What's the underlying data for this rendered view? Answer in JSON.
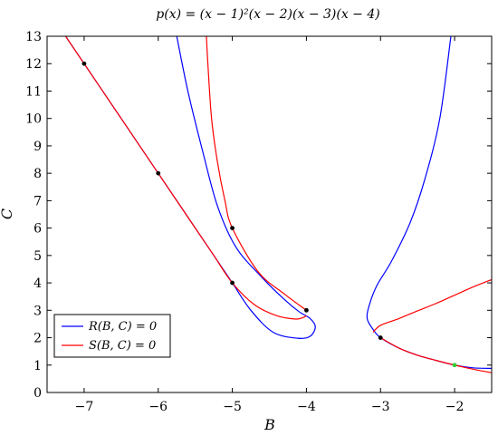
{
  "chart_data": {
    "type": "line",
    "title": "p(x) = (x − 1)²(x − 2)(x − 3)(x − 4)",
    "xlabel": "B",
    "ylabel": "C",
    "xlim": [
      -7.5,
      -1.5
    ],
    "ylim": [
      0,
      13
    ],
    "xticks": [
      -7,
      -6,
      -5,
      -4,
      -3,
      -2
    ],
    "yticks": [
      0,
      1,
      2,
      3,
      4,
      5,
      6,
      7,
      8,
      9,
      10,
      11,
      12,
      13
    ],
    "legend_position": "bottom-left",
    "series": [
      {
        "name": "R(B, C) = 0",
        "color": "#0000ff",
        "segments": [
          [
            [
              -7.25,
              13.0
            ],
            [
              -7.0,
              12.0
            ],
            [
              -6.75,
              11.0
            ],
            [
              -6.5,
              10.0
            ],
            [
              -6.25,
              9.0
            ],
            [
              -6.0,
              8.0
            ],
            [
              -5.75,
              7.0
            ],
            [
              -5.5,
              6.0
            ],
            [
              -5.25,
              5.0
            ],
            [
              -5.0,
              4.0
            ],
            [
              -4.75,
              3.0
            ],
            [
              -4.45,
              2.2
            ],
            [
              -4.12,
              1.98
            ],
            [
              -3.95,
              2.05
            ],
            [
              -3.88,
              2.4
            ],
            [
              -3.95,
              2.7
            ],
            [
              -4.1,
              2.95
            ],
            [
              -4.3,
              3.4
            ],
            [
              -4.6,
              4.2
            ],
            [
              -4.95,
              5.3
            ],
            [
              -5.2,
              6.8
            ],
            [
              -5.4,
              8.8
            ],
            [
              -5.6,
              11.0
            ],
            [
              -5.75,
              13.0
            ]
          ],
          [
            [
              -2.05,
              13.0
            ],
            [
              -2.2,
              10.0
            ],
            [
              -2.4,
              7.8
            ],
            [
              -2.6,
              6.2
            ],
            [
              -2.85,
              4.8
            ],
            [
              -3.05,
              3.9
            ],
            [
              -3.15,
              3.2
            ],
            [
              -3.18,
              2.7
            ],
            [
              -3.1,
              2.3
            ],
            [
              -3.0,
              2.0
            ],
            [
              -2.75,
              1.62
            ],
            [
              -2.5,
              1.36
            ],
            [
              -2.25,
              1.17
            ],
            [
              -2.0,
              1.0
            ],
            [
              -1.75,
              0.9
            ],
            [
              -1.5,
              0.88
            ]
          ]
        ]
      },
      {
        "name": "S(B, C) = 0",
        "color": "#ff0000",
        "segments": [
          [
            [
              -7.25,
              13.0
            ],
            [
              -7.0,
              12.0
            ],
            [
              -6.75,
              11.0
            ],
            [
              -6.5,
              10.0
            ],
            [
              -6.25,
              9.0
            ],
            [
              -6.0,
              8.0
            ],
            [
              -5.75,
              7.0
            ],
            [
              -5.5,
              6.0
            ],
            [
              -5.25,
              5.0
            ],
            [
              -5.0,
              4.0
            ],
            [
              -4.7,
              3.2
            ],
            [
              -4.4,
              2.8
            ],
            [
              -4.15,
              2.68
            ],
            [
              -4.05,
              2.73
            ],
            [
              -4.0,
              2.8
            ]
          ],
          [
            [
              -4.0,
              3.0
            ],
            [
              -4.3,
              3.6
            ],
            [
              -4.65,
              4.4
            ],
            [
              -5.0,
              6.0
            ],
            [
              -5.1,
              7.0
            ],
            [
              -5.2,
              8.4
            ],
            [
              -5.28,
              10.0
            ],
            [
              -5.33,
              12.0
            ],
            [
              -5.35,
              13.0
            ]
          ],
          [
            [
              -3.0,
              2.0
            ],
            [
              -2.75,
              1.62
            ],
            [
              -2.5,
              1.36
            ],
            [
              -2.25,
              1.17
            ],
            [
              -2.0,
              1.0
            ],
            [
              -1.75,
              0.85
            ],
            [
              -1.5,
              0.72
            ]
          ],
          [
            [
              -3.1,
              2.2
            ],
            [
              -3.0,
              2.45
            ],
            [
              -2.75,
              2.7
            ],
            [
              -2.5,
              2.98
            ],
            [
              -2.25,
              3.25
            ],
            [
              -2.0,
              3.55
            ],
            [
              -1.75,
              3.85
            ],
            [
              -1.5,
              4.12
            ]
          ]
        ]
      }
    ],
    "marked_points": [
      {
        "x": -7,
        "y": 12,
        "color": "#000000"
      },
      {
        "x": -6,
        "y": 8,
        "color": "#000000"
      },
      {
        "x": -5,
        "y": 6,
        "color": "#000000"
      },
      {
        "x": -5,
        "y": 4,
        "color": "#000000"
      },
      {
        "x": -4,
        "y": 3,
        "color": "#000000"
      },
      {
        "x": -3,
        "y": 2,
        "color": "#000000"
      },
      {
        "x": -2,
        "y": 1,
        "color": "#33cc33"
      }
    ]
  }
}
